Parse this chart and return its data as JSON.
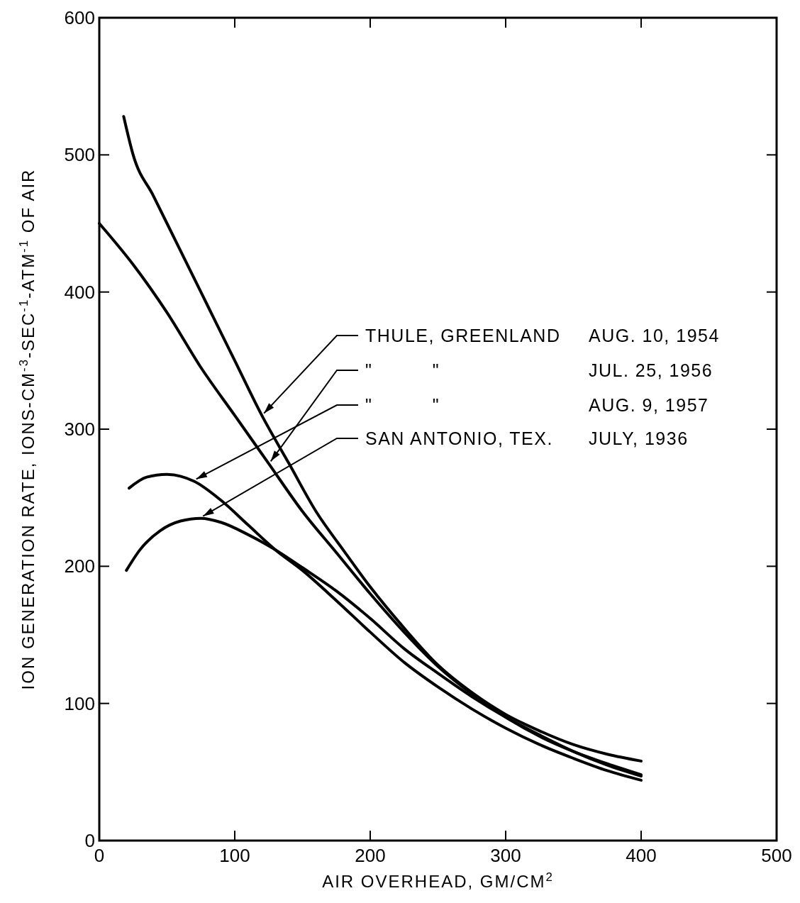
{
  "chart_data": {
    "type": "line",
    "xlabel": "AIR OVERHEAD, GM/CM$^{2}$",
    "ylabel": "ION GENERATION RATE, IONS-CM$^{-3}$-SEC$^{-1}$-ATM$^{-1}$ OF AIR",
    "xlim": [
      0,
      500
    ],
    "ylim": [
      0,
      600
    ],
    "xticks": [
      0,
      100,
      200,
      300,
      400,
      500
    ],
    "yticks": [
      0,
      100,
      200,
      300,
      400,
      500,
      600
    ],
    "grid": false,
    "line_style": "solid",
    "marker": "none",
    "series": [
      {
        "name": "THULE, GREENLAND  AUG. 10, 1954",
        "color": "#000000",
        "x": [
          18,
          25,
          40,
          60,
          80,
          100,
          120,
          140,
          160,
          180,
          200,
          225,
          250,
          275,
          300,
          325,
          350,
          375,
          400
        ],
        "values": [
          528,
          500,
          470,
          430,
          390,
          350,
          310,
          275,
          240,
          212,
          185,
          155,
          128,
          108,
          92,
          80,
          70,
          63,
          58
        ]
      },
      {
        "name": "\"          \"  JUL. 25, 1956",
        "color": "#000000",
        "x": [
          0,
          25,
          50,
          75,
          100,
          125,
          150,
          175,
          200,
          225,
          250,
          275,
          300,
          325,
          350,
          375,
          400
        ],
        "values": [
          450,
          420,
          385,
          345,
          310,
          275,
          240,
          210,
          180,
          152,
          127,
          107,
          90,
          76,
          65,
          56,
          48
        ]
      },
      {
        "name": "\"          \"  AUG. 9, 1957",
        "color": "#000000",
        "x": [
          22,
          35,
          50,
          70,
          90,
          110,
          130,
          150,
          175,
          200,
          225,
          250,
          275,
          300,
          325,
          350,
          375,
          400
        ],
        "values": [
          257,
          265,
          267,
          262,
          248,
          230,
          212,
          197,
          175,
          152,
          130,
          112,
          96,
          82,
          70,
          60,
          51,
          44
        ]
      },
      {
        "name": "SAN ANTONIO, TEX.  JULY, 1936",
        "color": "#000000",
        "x": [
          20,
          30,
          45,
          60,
          75,
          90,
          110,
          130,
          150,
          175,
          200,
          225,
          250,
          275,
          300,
          325,
          350,
          375,
          400
        ],
        "values": [
          197,
          212,
          226,
          233,
          235,
          232,
          223,
          212,
          199,
          182,
          162,
          140,
          122,
          105,
          90,
          77,
          65,
          55,
          47
        ]
      }
    ]
  }
}
